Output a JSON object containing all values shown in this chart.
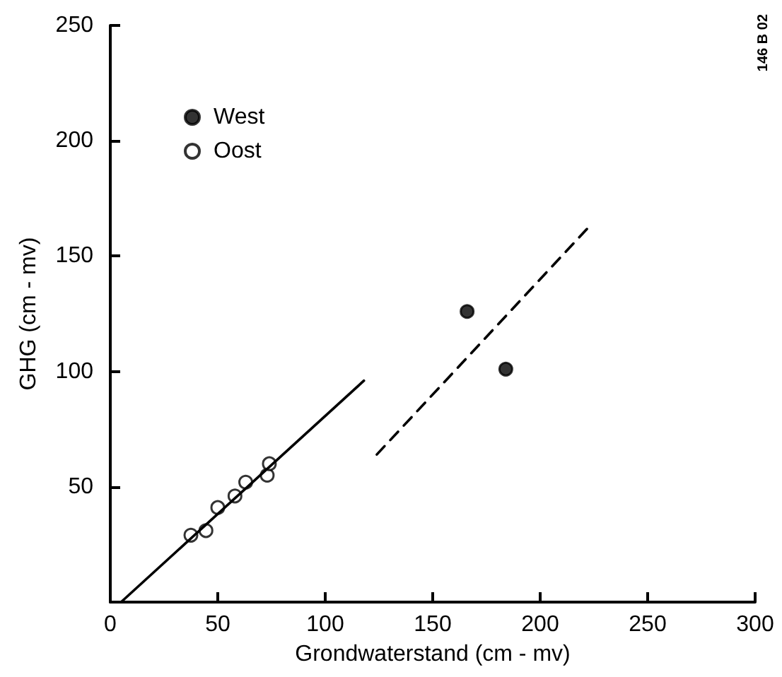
{
  "chart_data": {
    "type": "scatter",
    "xlabel": "Grondwaterstand (cm - mv)",
    "ylabel": "GHG (cm - mv)",
    "xlim": [
      0,
      300
    ],
    "xticks": [
      0,
      50,
      100,
      150,
      200,
      250,
      300
    ],
    "ylim": [
      0,
      250
    ],
    "yticks": [
      {
        "value": 0,
        "label": null
      },
      50,
      100,
      150,
      200,
      250
    ],
    "grid": false,
    "legend": "top left",
    "annotations": [
      "146 B 02"
    ],
    "series": [
      {
        "name": "West",
        "marker": "circle",
        "color": "#000000",
        "x": [
          166,
          184
        ],
        "values": [
          126,
          101
        ]
      },
      {
        "name": "Oost",
        "marker": "circle",
        "color": "#ffffff",
        "x": [
          37.5,
          44.5,
          50,
          58,
          63,
          73,
          74
        ],
        "values": [
          29,
          31,
          41,
          46,
          52,
          55,
          60
        ]
      },
      {
        "type": "line",
        "color": "#000000",
        "line_style": "solid",
        "x": [
          5,
          118
        ],
        "values": [
          0,
          96
        ]
      },
      {
        "type": "line",
        "color": "#000000",
        "line_style": "dashed",
        "x": [
          124,
          223
        ],
        "values": [
          64,
          163
        ]
      }
    ]
  }
}
